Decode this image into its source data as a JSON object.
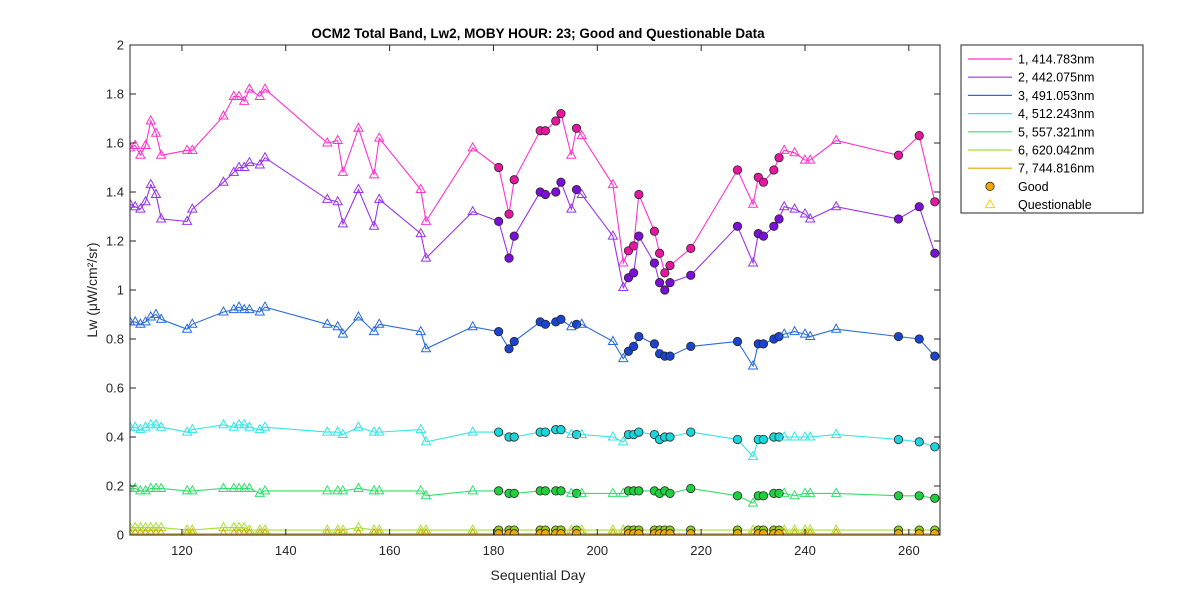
{
  "chart_data": {
    "type": "line",
    "title": "OCM2 Total Band,  Lw2, MOBY HOUR: 23;  Good and Questionable Data",
    "xlabel": "Sequential Day",
    "ylabel": "Lw (μW/cm²/sr)",
    "xlim": [
      110,
      266
    ],
    "ylim": [
      0,
      2
    ],
    "xticks": [
      120,
      140,
      160,
      180,
      200,
      220,
      240,
      260
    ],
    "yticks": [
      0,
      0.2,
      0.4,
      0.6,
      0.8,
      1,
      1.2,
      1.4,
      1.6,
      1.8,
      2
    ],
    "ytick_labels": [
      "0",
      "0.2",
      "0.4",
      "0.6",
      "0.8",
      "1",
      "1.2",
      "1.4",
      "1.6",
      "1.8",
      "2"
    ],
    "grid": false,
    "legend_position": "outside-top-right",
    "legend_markers": [
      {
        "label": "Good",
        "marker": "circle",
        "color": "#f0a800"
      },
      {
        "label": "Questionable",
        "marker": "triangle",
        "color": "#f5d000"
      }
    ],
    "x": [
      110,
      111,
      112,
      113,
      114,
      115,
      116,
      121,
      122,
      128,
      130,
      131,
      132,
      133,
      135,
      136,
      148,
      150,
      151,
      154,
      157,
      158,
      166,
      167,
      176,
      181,
      183,
      184,
      189,
      190,
      192,
      193,
      195,
      196,
      197,
      203,
      205,
      206,
      207,
      208,
      211,
      212,
      213,
      214,
      218,
      227,
      230,
      231,
      232,
      234,
      235,
      236,
      238,
      240,
      241,
      246,
      258,
      262,
      265
    ],
    "quality": [
      "Q",
      "Q",
      "Q",
      "Q",
      "Q",
      "Q",
      "Q",
      "Q",
      "Q",
      "Q",
      "Q",
      "Q",
      "Q",
      "Q",
      "Q",
      "Q",
      "Q",
      "Q",
      "Q",
      "Q",
      "Q",
      "Q",
      "Q",
      "Q",
      "Q",
      "G",
      "G",
      "G",
      "G",
      "G",
      "G",
      "G",
      "Q",
      "G",
      "Q",
      "Q",
      "Q",
      "G",
      "G",
      "G",
      "G",
      "G",
      "G",
      "G",
      "G",
      "G",
      "Q",
      "G",
      "G",
      "G",
      "G",
      "Q",
      "Q",
      "Q",
      "Q",
      "Q",
      "G",
      "G",
      "G"
    ],
    "series": [
      {
        "name": "1, 414.783nm",
        "color": "#ff33cc",
        "good_color": "#e6179f",
        "values": [
          1.58,
          1.59,
          1.55,
          1.59,
          1.69,
          1.64,
          1.55,
          1.57,
          1.57,
          1.71,
          1.79,
          1.79,
          1.77,
          1.82,
          1.79,
          1.82,
          1.6,
          1.61,
          1.48,
          1.66,
          1.47,
          1.62,
          1.41,
          1.28,
          1.58,
          1.5,
          1.31,
          1.45,
          1.65,
          1.65,
          1.69,
          1.72,
          1.55,
          1.66,
          1.63,
          1.43,
          1.11,
          1.16,
          1.18,
          1.39,
          1.24,
          1.15,
          1.07,
          1.1,
          1.17,
          1.49,
          1.35,
          1.46,
          1.44,
          1.49,
          1.54,
          1.57,
          1.56,
          1.53,
          1.53,
          1.61,
          1.55,
          1.63,
          1.36
        ]
      },
      {
        "name": "2, 442.075nm",
        "color": "#9933ee",
        "good_color": "#7a0fd6",
        "values": [
          1.35,
          1.34,
          1.33,
          1.36,
          1.43,
          1.39,
          1.29,
          1.28,
          1.33,
          1.44,
          1.48,
          1.5,
          1.5,
          1.52,
          1.51,
          1.54,
          1.37,
          1.36,
          1.27,
          1.41,
          1.26,
          1.37,
          1.23,
          1.13,
          1.32,
          1.28,
          1.13,
          1.22,
          1.4,
          1.39,
          1.4,
          1.44,
          1.33,
          1.41,
          1.39,
          1.22,
          1.01,
          1.05,
          1.07,
          1.22,
          1.11,
          1.03,
          1.0,
          1.03,
          1.06,
          1.26,
          1.11,
          1.23,
          1.22,
          1.26,
          1.29,
          1.34,
          1.33,
          1.31,
          1.29,
          1.34,
          1.29,
          1.34,
          1.15
        ]
      },
      {
        "name": "3, 491.053nm",
        "color": "#2a6be0",
        "good_color": "#1a44d0",
        "values": [
          0.87,
          0.87,
          0.86,
          0.87,
          0.89,
          0.9,
          0.88,
          0.84,
          0.86,
          0.91,
          0.92,
          0.93,
          0.92,
          0.92,
          0.91,
          0.93,
          0.86,
          0.85,
          0.82,
          0.89,
          0.83,
          0.86,
          0.83,
          0.76,
          0.85,
          0.83,
          0.76,
          0.79,
          0.87,
          0.86,
          0.87,
          0.88,
          0.85,
          0.86,
          0.86,
          0.79,
          0.72,
          0.75,
          0.77,
          0.81,
          0.78,
          0.74,
          0.73,
          0.73,
          0.77,
          0.79,
          0.69,
          0.78,
          0.78,
          0.8,
          0.81,
          0.82,
          0.83,
          0.82,
          0.81,
          0.84,
          0.81,
          0.8,
          0.73
        ]
      },
      {
        "name": "4, 512.243nm",
        "color": "#33e6e6",
        "good_color": "#18d6dc",
        "values": [
          0.44,
          0.44,
          0.43,
          0.44,
          0.45,
          0.45,
          0.44,
          0.42,
          0.43,
          0.45,
          0.44,
          0.45,
          0.45,
          0.44,
          0.43,
          0.44,
          0.42,
          0.42,
          0.41,
          0.44,
          0.42,
          0.42,
          0.43,
          0.38,
          0.42,
          0.42,
          0.4,
          0.4,
          0.42,
          0.42,
          0.43,
          0.43,
          0.41,
          0.41,
          0.41,
          0.4,
          0.38,
          0.41,
          0.41,
          0.42,
          0.41,
          0.39,
          0.4,
          0.4,
          0.42,
          0.39,
          0.32,
          0.39,
          0.39,
          0.4,
          0.4,
          0.4,
          0.4,
          0.4,
          0.4,
          0.41,
          0.39,
          0.38,
          0.36
        ]
      },
      {
        "name": "5, 557.321nm",
        "color": "#33e06a",
        "good_color": "#1fcf3e",
        "values": [
          0.19,
          0.19,
          0.18,
          0.18,
          0.19,
          0.19,
          0.19,
          0.18,
          0.18,
          0.19,
          0.19,
          0.19,
          0.19,
          0.19,
          0.17,
          0.18,
          0.18,
          0.18,
          0.18,
          0.19,
          0.18,
          0.18,
          0.18,
          0.16,
          0.18,
          0.18,
          0.17,
          0.17,
          0.18,
          0.18,
          0.18,
          0.18,
          0.17,
          0.17,
          0.17,
          0.17,
          0.17,
          0.18,
          0.18,
          0.18,
          0.18,
          0.17,
          0.18,
          0.17,
          0.19,
          0.16,
          0.13,
          0.16,
          0.16,
          0.17,
          0.17,
          0.17,
          0.16,
          0.17,
          0.17,
          0.17,
          0.16,
          0.16,
          0.15
        ]
      },
      {
        "name": "6, 620.042nm",
        "color": "#a6e033",
        "good_color": "#8fd01a",
        "values": [
          0.03,
          0.03,
          0.03,
          0.03,
          0.03,
          0.03,
          0.03,
          0.02,
          0.02,
          0.03,
          0.03,
          0.03,
          0.03,
          0.02,
          0.02,
          0.02,
          0.02,
          0.02,
          0.02,
          0.03,
          0.02,
          0.02,
          0.02,
          0.02,
          0.02,
          0.02,
          0.02,
          0.02,
          0.02,
          0.02,
          0.02,
          0.02,
          0.02,
          0.02,
          0.02,
          0.02,
          0.02,
          0.02,
          0.02,
          0.02,
          0.02,
          0.02,
          0.02,
          0.02,
          0.02,
          0.02,
          0.02,
          0.02,
          0.02,
          0.02,
          0.02,
          0.02,
          0.02,
          0.02,
          0.02,
          0.02,
          0.02,
          0.02,
          0.02
        ]
      },
      {
        "name": "7, 744.816nm",
        "color": "#e0a000",
        "good_color": "#f0a800",
        "values": [
          0.005,
          0.005,
          0.005,
          0.005,
          0.005,
          0.005,
          0.005,
          0.005,
          0.005,
          0.005,
          0.005,
          0.005,
          0.005,
          0.005,
          0.005,
          0.005,
          0.005,
          0.005,
          0.005,
          0.005,
          0.005,
          0.005,
          0.005,
          0.005,
          0.005,
          0.005,
          0.005,
          0.005,
          0.005,
          0.005,
          0.005,
          0.005,
          0.005,
          0.005,
          0.005,
          0.005,
          0.005,
          0.005,
          0.005,
          0.005,
          0.005,
          0.005,
          0.005,
          0.005,
          0.005,
          0.005,
          0.005,
          0.005,
          0.005,
          0.005,
          0.005,
          0.005,
          0.005,
          0.005,
          0.005,
          0.005,
          0.005,
          0.005,
          0.005
        ]
      }
    ]
  }
}
